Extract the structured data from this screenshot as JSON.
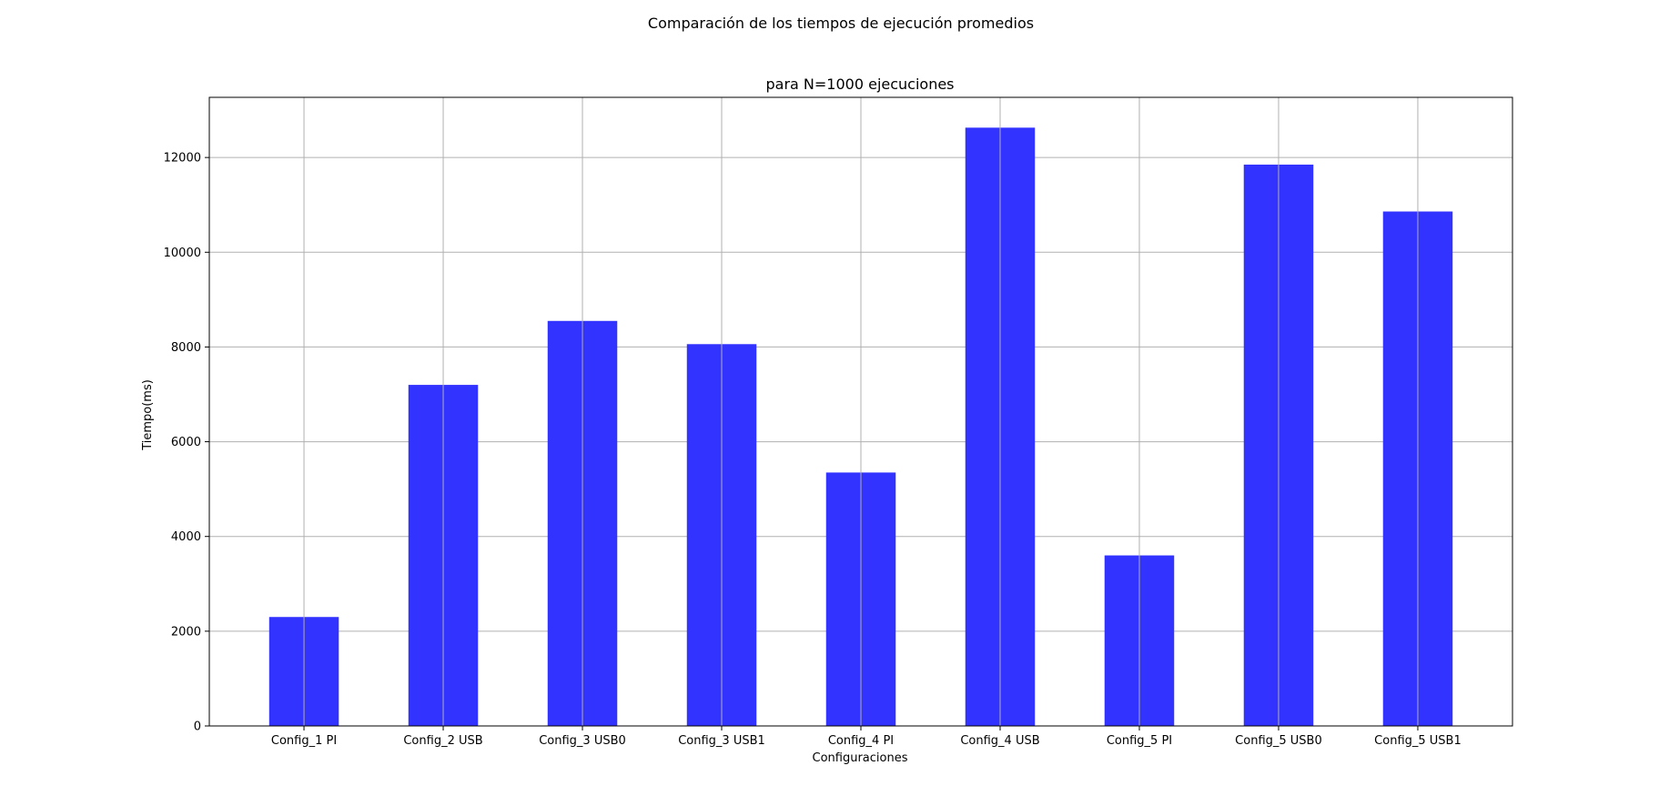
{
  "chart_data": {
    "type": "bar",
    "suptitle": "Comparación de los tiempos de ejecución promedios",
    "title": "para  N=1000 ejecuciones",
    "xlabel": "Configuraciones",
    "ylabel": "Tiempo(ms)",
    "categories": [
      "Config_1 PI",
      "Config_2 USB",
      "Config_3 USB0",
      "Config_3 USB1",
      "Config_4 PI",
      "Config_4 USB",
      "Config_5 PI",
      "Config_5 USB0",
      "Config_5 USB1"
    ],
    "values": [
      2300,
      7200,
      8550,
      8060,
      5350,
      12630,
      3600,
      11850,
      10860
    ],
    "ylim": [
      0,
      13270
    ],
    "yticks": [
      0,
      2000,
      4000,
      6000,
      8000,
      10000,
      12000
    ],
    "ytick_labels": [
      "0",
      "2000",
      "4000",
      "6000",
      "8000",
      "10000",
      "12000"
    ],
    "bar_color": "#3333ff",
    "grid": true
  }
}
